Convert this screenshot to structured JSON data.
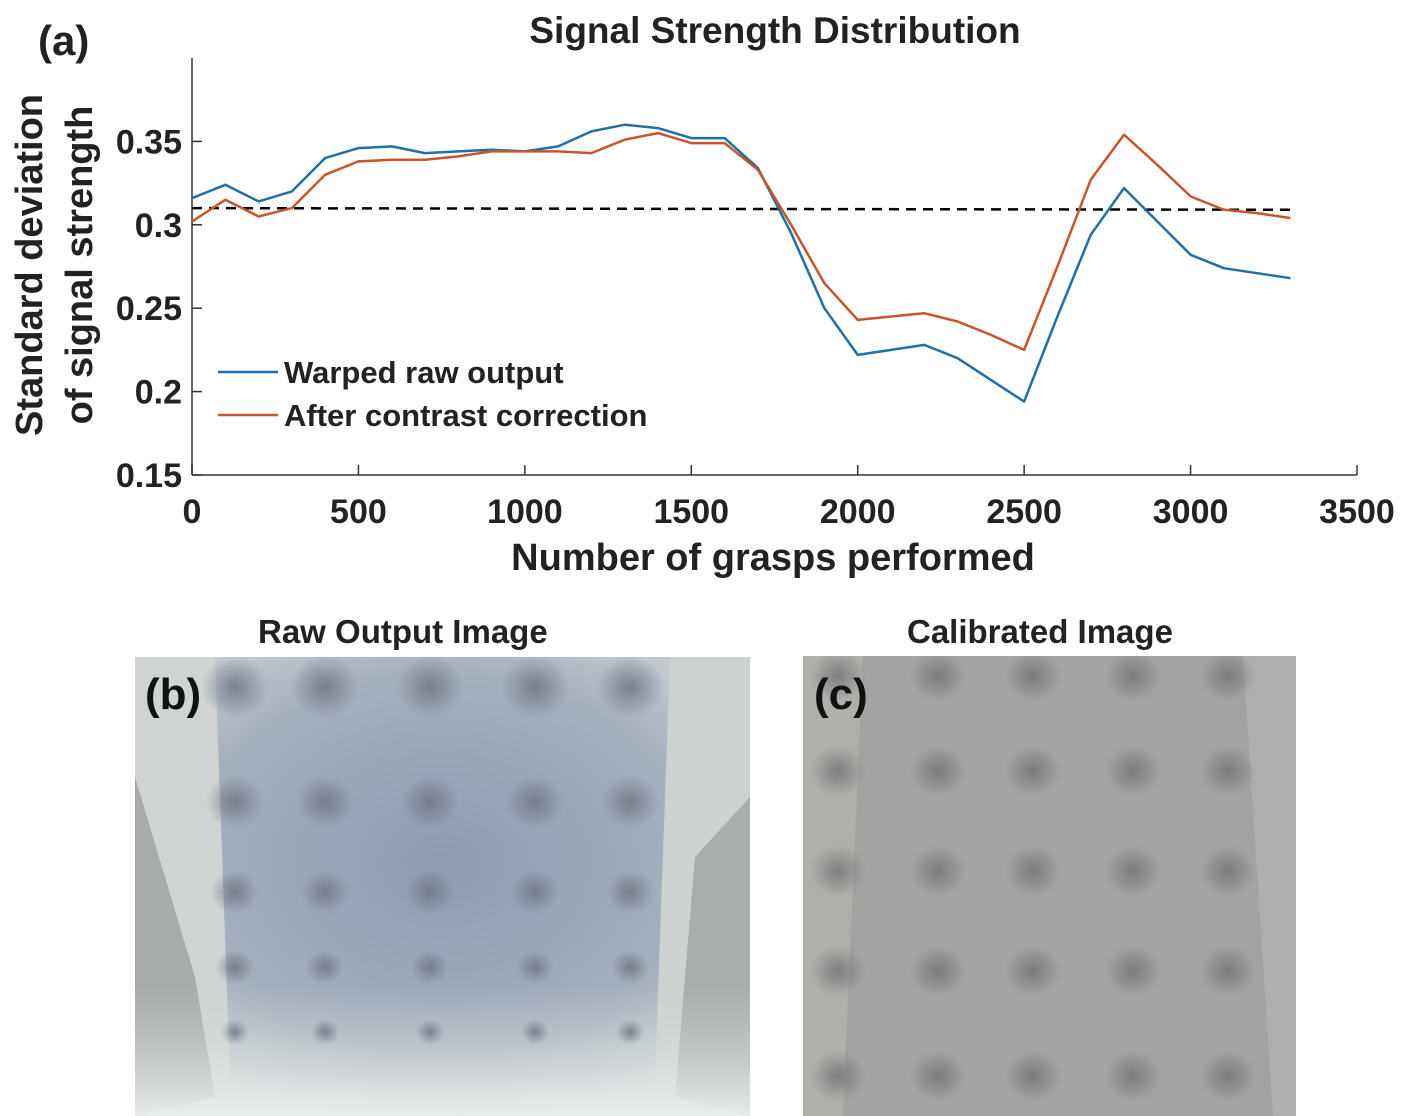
{
  "panel_a_label": "(a)",
  "panel_b_label": "(b)",
  "panel_c_label": "(c)",
  "panel_b_title": "Raw Output Image",
  "panel_c_title": "Calibrated Image",
  "colors": {
    "series_raw": "#1f6fa8",
    "series_corrected": "#c8552a",
    "threshold": "#000000",
    "axis": "#333333"
  },
  "chart_data": {
    "type": "line",
    "title": "Signal Strength Distribution",
    "xlabel": "Number of grasps performed",
    "ylabel_line1": "Standard deviation",
    "ylabel_line2": "of signal strength",
    "xlim": [
      0,
      3500
    ],
    "ylim": [
      0.15,
      0.4
    ],
    "x_ticks": [
      0,
      500,
      1000,
      1500,
      2000,
      2500,
      3000,
      3500
    ],
    "y_ticks": [
      0.15,
      0.2,
      0.25,
      0.3,
      0.35
    ],
    "y_tick_labels": [
      "0.15",
      "0.2",
      "0.25",
      "0.3",
      "0.35"
    ],
    "legend_position": "bottom-left",
    "series": [
      {
        "name": "Warped raw output",
        "color": "#1f6fa8",
        "x": [
          0,
          100,
          200,
          300,
          400,
          500,
          600,
          700,
          800,
          900,
          1000,
          1100,
          1200,
          1300,
          1400,
          1500,
          1600,
          1700,
          1800,
          1900,
          2000,
          2100,
          2200,
          2300,
          2400,
          2500,
          2600,
          2700,
          2800,
          2900,
          3000,
          3100,
          3200,
          3300
        ],
        "y": [
          0.316,
          0.324,
          0.314,
          0.32,
          0.34,
          0.346,
          0.347,
          0.343,
          0.344,
          0.345,
          0.344,
          0.347,
          0.356,
          0.36,
          0.358,
          0.352,
          0.352,
          0.334,
          0.295,
          0.25,
          0.222,
          0.225,
          0.228,
          0.22,
          0.207,
          0.194,
          0.245,
          0.294,
          0.322,
          0.302,
          0.282,
          0.274,
          0.271,
          0.268
        ]
      },
      {
        "name": "After contrast correction",
        "color": "#c8552a",
        "x": [
          0,
          100,
          200,
          300,
          400,
          500,
          600,
          700,
          800,
          900,
          1000,
          1100,
          1200,
          1300,
          1400,
          1500,
          1600,
          1700,
          1800,
          1900,
          2000,
          2100,
          2200,
          2300,
          2400,
          2500,
          2600,
          2700,
          2800,
          2900,
          3000,
          3100,
          3200,
          3300
        ],
        "y": [
          0.302,
          0.315,
          0.305,
          0.31,
          0.33,
          0.338,
          0.339,
          0.339,
          0.341,
          0.344,
          0.344,
          0.344,
          0.343,
          0.351,
          0.355,
          0.349,
          0.349,
          0.333,
          0.3,
          0.265,
          0.243,
          0.245,
          0.247,
          0.242,
          0.234,
          0.225,
          0.275,
          0.327,
          0.354,
          0.336,
          0.317,
          0.309,
          0.307,
          0.304
        ]
      }
    ],
    "reference_line": {
      "style": "dashed",
      "x": [
        0,
        3300
      ],
      "y": [
        0.31,
        0.309
      ]
    }
  }
}
